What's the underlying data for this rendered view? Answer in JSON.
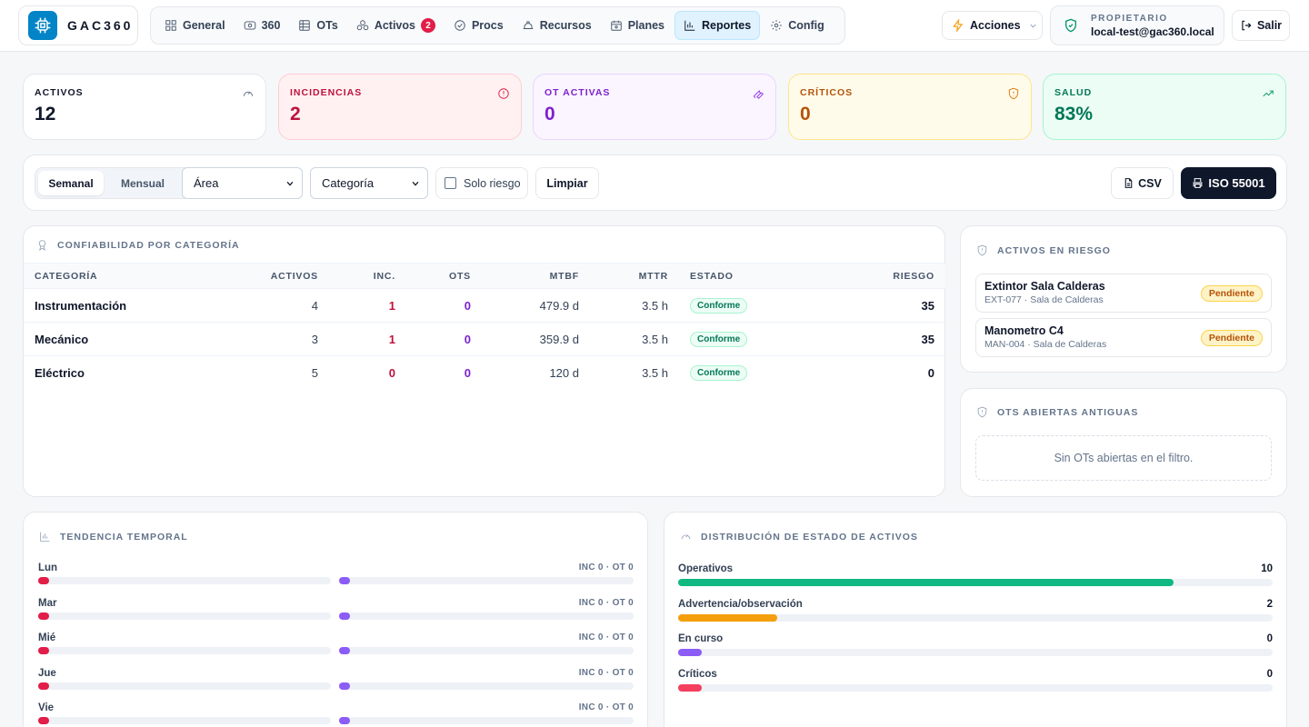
{
  "brand": {
    "name": "GAC360"
  },
  "nav": [
    {
      "key": "general",
      "label": "General",
      "icon": "grid-icon"
    },
    {
      "key": "360",
      "label": "360",
      "icon": "eye-icon"
    },
    {
      "key": "ots",
      "label": "OTs",
      "icon": "table-icon"
    },
    {
      "key": "activos",
      "label": "Activos",
      "icon": "boxes-icon",
      "badge": "2"
    },
    {
      "key": "procs",
      "label": "Procs",
      "icon": "check-circle-icon"
    },
    {
      "key": "recursos",
      "label": "Recursos",
      "icon": "hardhat-icon"
    },
    {
      "key": "planes",
      "label": "Planes",
      "icon": "calendar-icon"
    },
    {
      "key": "reportes",
      "label": "Reportes",
      "icon": "bar-chart-icon",
      "active": true
    },
    {
      "key": "config",
      "label": "Config",
      "icon": "gear-icon"
    }
  ],
  "header": {
    "actions_label": "Acciones",
    "owner_role": "PROPIETARIO",
    "owner_email": "local-test@gac360.local",
    "logout_label": "Salir"
  },
  "kpis": {
    "activos": {
      "label": "ACTIVOS",
      "value": "12",
      "color": "#0f172a",
      "bg": "#ffffff",
      "border": "#e5e7eb",
      "icon": "gauge-icon"
    },
    "incidencias": {
      "label": "INCIDENCIAS",
      "value": "2",
      "color": "#be123c",
      "bg": "#fff1f2",
      "border": "#fecdd3",
      "icon": "alert-circle-icon"
    },
    "ot_activas": {
      "label": "OT ACTIVAS",
      "value": "0",
      "color": "#7e22ce",
      "bg": "#faf5ff",
      "border": "#e9d5ff",
      "icon": "wrench-icon"
    },
    "criticos": {
      "label": "CRÍTICOS",
      "value": "0",
      "color": "#b45309",
      "bg": "#fffbeb",
      "border": "#fde68a",
      "icon": "shield-alert-icon"
    },
    "salud": {
      "label": "SALUD",
      "value": "83%",
      "color": "#047857",
      "bg": "#ecfdf5",
      "border": "#a7f3d0",
      "icon": "trending-up-icon"
    }
  },
  "filters": {
    "period_weekly": "Semanal",
    "period_monthly": "Mensual",
    "area_value": "Área",
    "category_value": "Categoría",
    "risk_only_label": "Solo riesgo",
    "clear_label": "Limpiar",
    "csv_label": "CSV",
    "iso_label": "ISO 55001"
  },
  "reliability": {
    "title": "CONFIABILIDAD POR CATEGORÍA",
    "columns": [
      "CATEGORÍA",
      "ACTIVOS",
      "INC.",
      "OTS",
      "MTBF",
      "MTTR",
      "ESTADO",
      "RIESGO"
    ],
    "rows": [
      {
        "categoria": "Instrumentación",
        "activos": "4",
        "inc": "1",
        "ots": "0",
        "mtbf": "479.9 d",
        "mttr": "3.5 h",
        "estado": "Conforme",
        "riesgo": "35"
      },
      {
        "categoria": "Mecánico",
        "activos": "3",
        "inc": "1",
        "ots": "0",
        "mtbf": "359.9 d",
        "mttr": "3.5 h",
        "estado": "Conforme",
        "riesgo": "35"
      },
      {
        "categoria": "Eléctrico",
        "activos": "5",
        "inc": "0",
        "ots": "0",
        "mtbf": "120 d",
        "mttr": "3.5 h",
        "estado": "Conforme",
        "riesgo": "0"
      }
    ]
  },
  "risk_assets": {
    "title": "ACTIVOS EN RIESGO",
    "items": [
      {
        "name": "Extintor Sala Calderas",
        "sub": "EXT-077 · Sala de Calderas",
        "status": "Pendiente"
      },
      {
        "name": "Manometro C4",
        "sub": "MAN-004 · Sala de Calderas",
        "status": "Pendiente"
      }
    ]
  },
  "old_ots": {
    "title": "OTS ABIERTAS ANTIGUAS",
    "empty": "Sin OTs abiertas en el filtro."
  },
  "trend": {
    "title": "TENDENCIA TEMPORAL",
    "inc_color": "#e11d48",
    "ot_color": "#8b5cf6",
    "days": [
      {
        "day": "Lun",
        "meta": "INC 0 · OT 0"
      },
      {
        "day": "Mar",
        "meta": "INC 0 · OT 0"
      },
      {
        "day": "Mié",
        "meta": "INC 0 · OT 0"
      },
      {
        "day": "Jue",
        "meta": "INC 0 · OT 0"
      },
      {
        "day": "Vie",
        "meta": "INC 0 · OT 0"
      }
    ]
  },
  "distribution": {
    "title": "DISTRIBUCIÓN DE ESTADO DE ACTIVOS",
    "total": 12,
    "rows": [
      {
        "label": "Operativos",
        "count": "10",
        "value": 10,
        "color": "#10b981"
      },
      {
        "label": "Advertencia/observación",
        "count": "2",
        "value": 2,
        "color": "#f59e0b"
      },
      {
        "label": "En curso",
        "count": "0",
        "value": 0,
        "color": "#8b5cf6"
      },
      {
        "label": "Críticos",
        "count": "0",
        "value": 0,
        "color": "#f43f5e"
      }
    ]
  }
}
